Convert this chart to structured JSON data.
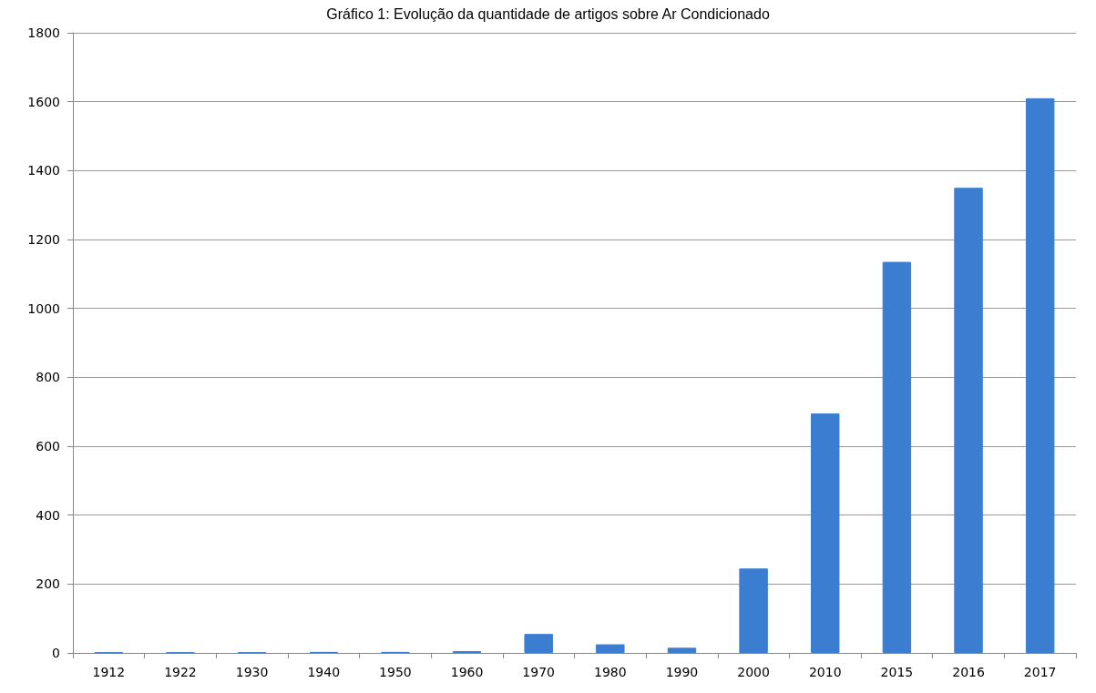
{
  "chart_data": {
    "type": "bar",
    "title": "Gráfico 1: Evolução da quantidade de artigos sobre Ar Condicionado",
    "categories": [
      "1912",
      "1922",
      "1930",
      "1940",
      "1950",
      "1960",
      "1970",
      "1980",
      "1990",
      "2000",
      "2010",
      "2015",
      "2016",
      "2017"
    ],
    "values": [
      1,
      1,
      1,
      3,
      3,
      5,
      55,
      25,
      15,
      245,
      695,
      1135,
      1350,
      1610
    ],
    "color": "#3b7dd0",
    "ylim": [
      0,
      1800
    ],
    "yticks": [
      0,
      200,
      400,
      600,
      800,
      1000,
      1200,
      1400,
      1600,
      1800
    ],
    "grid": "y"
  }
}
